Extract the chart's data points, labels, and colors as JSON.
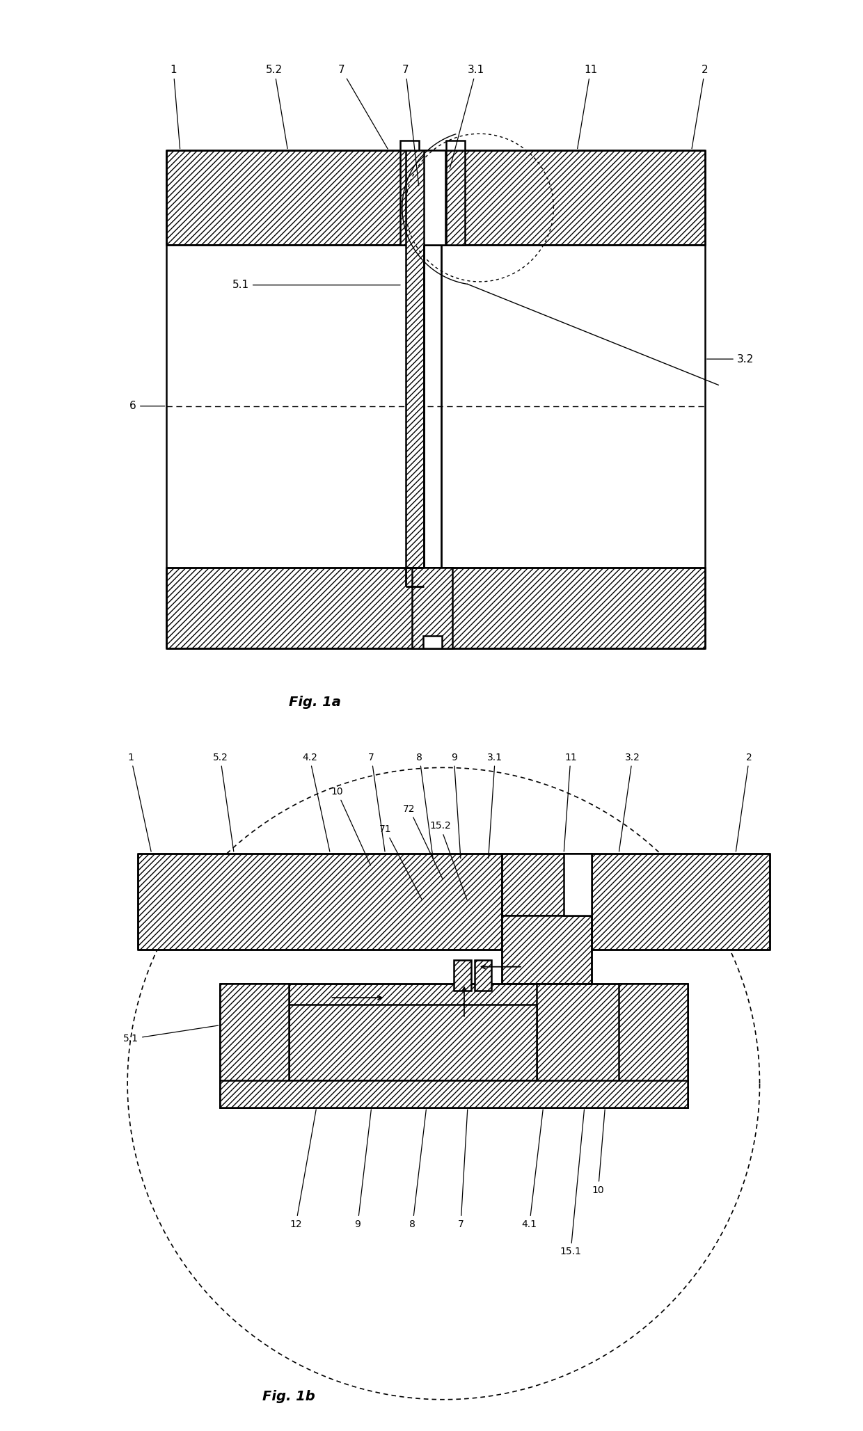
{
  "fig_width": 12.4,
  "fig_height": 20.57,
  "bg_color": "#ffffff",
  "fig1a_caption": "Fig. 1a",
  "fig1b_caption": "Fig. 1b"
}
